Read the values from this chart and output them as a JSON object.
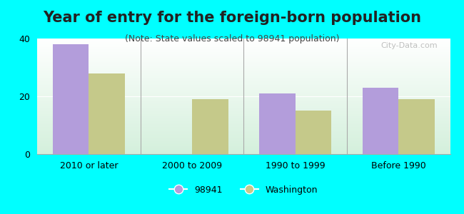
{
  "title": "Year of entry for the foreign-born population",
  "subtitle": "(Note: State values scaled to 98941 population)",
  "categories": [
    "2010 or later",
    "2000 to 2009",
    "1990 to 1999",
    "Before 1990"
  ],
  "values_98941": [
    38,
    0,
    21,
    23
  ],
  "values_washington": [
    28,
    19,
    15,
    19
  ],
  "bar_color_98941": "#b39ddb",
  "bar_color_washington": "#c5c98a",
  "background_color": "#00FFFF",
  "ylim": [
    0,
    40
  ],
  "yticks": [
    0,
    20,
    40
  ],
  "legend_label_98941": "98941",
  "legend_label_washington": "Washington",
  "title_fontsize": 15,
  "subtitle_fontsize": 9,
  "watermark": "City-Data.com"
}
